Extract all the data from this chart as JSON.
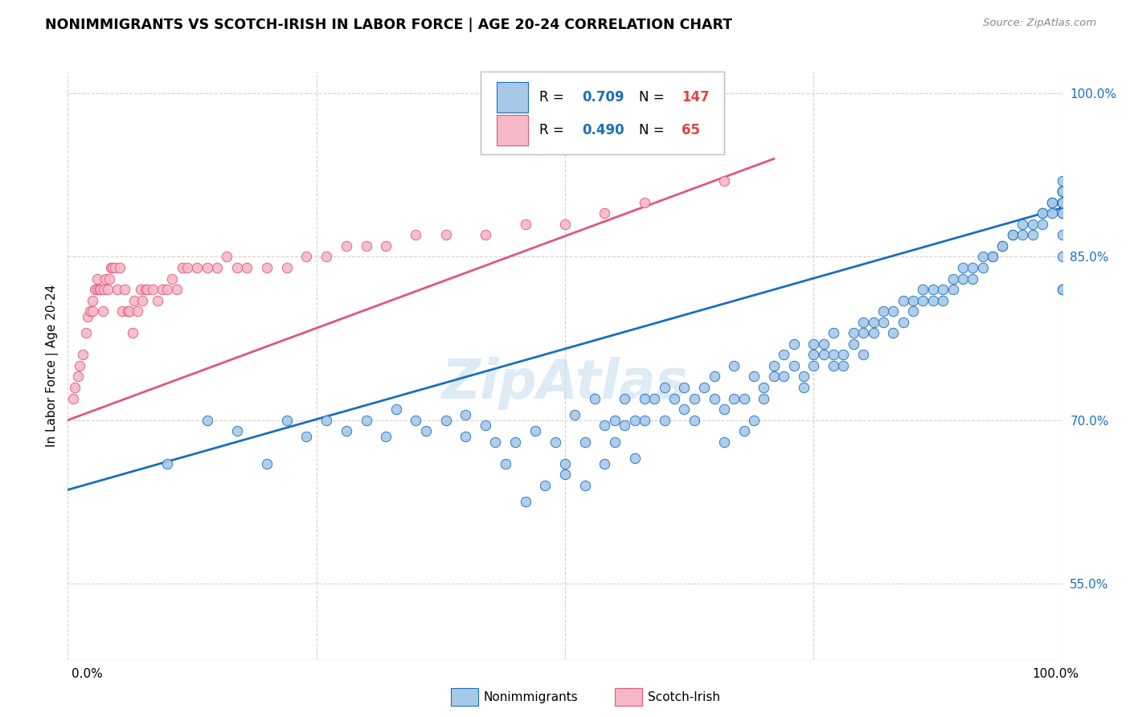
{
  "title": "NONIMMIGRANTS VS SCOTCH-IRISH IN LABOR FORCE | AGE 20-24 CORRELATION CHART",
  "source": "Source: ZipAtlas.com",
  "ylabel": "In Labor Force | Age 20-24",
  "y_ticks": [
    55.0,
    70.0,
    85.0,
    100.0
  ],
  "blue_R": 0.709,
  "blue_N": 147,
  "pink_R": 0.49,
  "pink_N": 65,
  "blue_color": "#a8c8e8",
  "pink_color": "#f4b8c8",
  "blue_line_color": "#1a6fbd",
  "pink_line_color": "#e05878",
  "blue_scatter_x": [
    0.1,
    0.14,
    0.17,
    0.2,
    0.22,
    0.24,
    0.26,
    0.28,
    0.3,
    0.32,
    0.33,
    0.35,
    0.36,
    0.38,
    0.4,
    0.4,
    0.42,
    0.43,
    0.44,
    0.45,
    0.46,
    0.47,
    0.48,
    0.49,
    0.5,
    0.5,
    0.51,
    0.52,
    0.52,
    0.53,
    0.54,
    0.54,
    0.55,
    0.55,
    0.56,
    0.56,
    0.57,
    0.57,
    0.58,
    0.58,
    0.59,
    0.6,
    0.6,
    0.61,
    0.62,
    0.62,
    0.63,
    0.63,
    0.64,
    0.65,
    0.65,
    0.66,
    0.66,
    0.67,
    0.67,
    0.68,
    0.68,
    0.69,
    0.69,
    0.7,
    0.7,
    0.71,
    0.71,
    0.72,
    0.72,
    0.73,
    0.73,
    0.74,
    0.74,
    0.75,
    0.75,
    0.75,
    0.76,
    0.76,
    0.77,
    0.77,
    0.77,
    0.78,
    0.78,
    0.79,
    0.79,
    0.8,
    0.8,
    0.8,
    0.81,
    0.81,
    0.82,
    0.82,
    0.83,
    0.83,
    0.84,
    0.84,
    0.85,
    0.85,
    0.86,
    0.86,
    0.87,
    0.87,
    0.88,
    0.88,
    0.89,
    0.89,
    0.9,
    0.9,
    0.91,
    0.91,
    0.92,
    0.92,
    0.93,
    0.93,
    0.94,
    0.94,
    0.95,
    0.95,
    0.96,
    0.96,
    0.97,
    0.97,
    0.98,
    0.98,
    0.98,
    0.99,
    0.99,
    0.99,
    1.0,
    1.0,
    1.0,
    1.0,
    1.0,
    1.0,
    1.0,
    1.0,
    1.0,
    1.0,
    1.0,
    1.0,
    1.0,
    1.0,
    1.0,
    1.0,
    1.0,
    1.0,
    1.0,
    1.0
  ],
  "blue_scatter_y": [
    0.66,
    0.7,
    0.69,
    0.66,
    0.7,
    0.685,
    0.7,
    0.69,
    0.7,
    0.685,
    0.71,
    0.7,
    0.69,
    0.7,
    0.685,
    0.705,
    0.695,
    0.68,
    0.66,
    0.68,
    0.625,
    0.69,
    0.64,
    0.68,
    0.65,
    0.66,
    0.705,
    0.64,
    0.68,
    0.72,
    0.66,
    0.695,
    0.68,
    0.7,
    0.695,
    0.72,
    0.665,
    0.7,
    0.72,
    0.7,
    0.72,
    0.7,
    0.73,
    0.72,
    0.73,
    0.71,
    0.7,
    0.72,
    0.73,
    0.74,
    0.72,
    0.68,
    0.71,
    0.75,
    0.72,
    0.69,
    0.72,
    0.7,
    0.74,
    0.72,
    0.73,
    0.74,
    0.75,
    0.74,
    0.76,
    0.75,
    0.77,
    0.73,
    0.74,
    0.75,
    0.76,
    0.77,
    0.76,
    0.77,
    0.75,
    0.76,
    0.78,
    0.76,
    0.75,
    0.78,
    0.77,
    0.78,
    0.79,
    0.76,
    0.78,
    0.79,
    0.8,
    0.79,
    0.78,
    0.8,
    0.81,
    0.79,
    0.8,
    0.81,
    0.81,
    0.82,
    0.81,
    0.82,
    0.82,
    0.81,
    0.83,
    0.82,
    0.83,
    0.84,
    0.83,
    0.84,
    0.84,
    0.85,
    0.85,
    0.85,
    0.86,
    0.86,
    0.87,
    0.87,
    0.87,
    0.88,
    0.88,
    0.87,
    0.88,
    0.89,
    0.89,
    0.89,
    0.9,
    0.9,
    0.9,
    0.9,
    0.91,
    0.91,
    0.9,
    0.91,
    0.91,
    0.91,
    0.9,
    0.91,
    0.9,
    0.82,
    0.89,
    0.89,
    0.9,
    0.82,
    0.92,
    0.85,
    0.9,
    0.87
  ],
  "pink_scatter_x": [
    0.005,
    0.007,
    0.01,
    0.012,
    0.015,
    0.018,
    0.02,
    0.022,
    0.025,
    0.025,
    0.027,
    0.03,
    0.03,
    0.032,
    0.033,
    0.035,
    0.036,
    0.038,
    0.04,
    0.042,
    0.043,
    0.045,
    0.047,
    0.05,
    0.052,
    0.055,
    0.057,
    0.06,
    0.062,
    0.065,
    0.067,
    0.07,
    0.073,
    0.075,
    0.078,
    0.08,
    0.085,
    0.09,
    0.095,
    0.1,
    0.105,
    0.11,
    0.115,
    0.12,
    0.13,
    0.14,
    0.15,
    0.16,
    0.17,
    0.18,
    0.2,
    0.22,
    0.24,
    0.26,
    0.28,
    0.3,
    0.32,
    0.35,
    0.38,
    0.42,
    0.46,
    0.5,
    0.54,
    0.58,
    0.66
  ],
  "pink_scatter_y": [
    0.72,
    0.73,
    0.74,
    0.75,
    0.76,
    0.78,
    0.795,
    0.8,
    0.8,
    0.81,
    0.82,
    0.82,
    0.83,
    0.82,
    0.82,
    0.8,
    0.82,
    0.83,
    0.82,
    0.83,
    0.84,
    0.84,
    0.84,
    0.82,
    0.84,
    0.8,
    0.82,
    0.8,
    0.8,
    0.78,
    0.81,
    0.8,
    0.82,
    0.81,
    0.82,
    0.82,
    0.82,
    0.81,
    0.82,
    0.82,
    0.83,
    0.82,
    0.84,
    0.84,
    0.84,
    0.84,
    0.84,
    0.85,
    0.84,
    0.84,
    0.84,
    0.84,
    0.85,
    0.85,
    0.86,
    0.86,
    0.86,
    0.87,
    0.87,
    0.87,
    0.88,
    0.88,
    0.89,
    0.9,
    0.92
  ],
  "blue_line_x": [
    0.0,
    1.0
  ],
  "blue_line_y": [
    0.636,
    0.895
  ],
  "pink_line_x": [
    0.0,
    0.71
  ],
  "pink_line_y": [
    0.7,
    0.94
  ],
  "xlim": [
    0.0,
    1.0
  ],
  "ylim": [
    0.48,
    1.02
  ],
  "watermark_color": "#c5dff0",
  "watermark_alpha": 0.6
}
